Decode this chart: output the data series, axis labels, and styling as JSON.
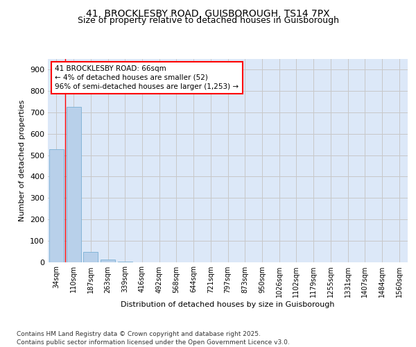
{
  "title_line1": "41, BROCKLESBY ROAD, GUISBOROUGH, TS14 7PX",
  "title_line2": "Size of property relative to detached houses in Guisborough",
  "xlabel": "Distribution of detached houses by size in Guisborough",
  "ylabel": "Number of detached properties",
  "categories": [
    "34sqm",
    "110sqm",
    "187sqm",
    "263sqm",
    "339sqm",
    "416sqm",
    "492sqm",
    "568sqm",
    "644sqm",
    "721sqm",
    "797sqm",
    "873sqm",
    "950sqm",
    "1026sqm",
    "1102sqm",
    "1179sqm",
    "1255sqm",
    "1331sqm",
    "1407sqm",
    "1484sqm",
    "1560sqm"
  ],
  "values": [
    527,
    726,
    46,
    10,
    3,
    0,
    0,
    0,
    0,
    0,
    0,
    0,
    0,
    0,
    0,
    0,
    0,
    0,
    0,
    0,
    0
  ],
  "bar_color": "#b8d0ea",
  "bar_edge_color": "#7aafd4",
  "grid_color": "#c8c8c8",
  "background_color": "#dce8f8",
  "annotation_text": "41 BROCKLESBY ROAD: 66sqm\n← 4% of detached houses are smaller (52)\n96% of semi-detached houses are larger (1,253) →",
  "annotation_box_color": "white",
  "annotation_box_edge_color": "red",
  "vline_color": "red",
  "ylim_max": 950,
  "yticks": [
    0,
    100,
    200,
    300,
    400,
    500,
    600,
    700,
    800,
    900
  ],
  "footer_text": "Contains HM Land Registry data © Crown copyright and database right 2025.\nContains public sector information licensed under the Open Government Licence v3.0.",
  "title_fontsize": 10,
  "subtitle_fontsize": 9,
  "tick_fontsize": 7,
  "ylabel_fontsize": 8,
  "xlabel_fontsize": 8,
  "annotation_fontsize": 7.5,
  "footer_fontsize": 6.5
}
